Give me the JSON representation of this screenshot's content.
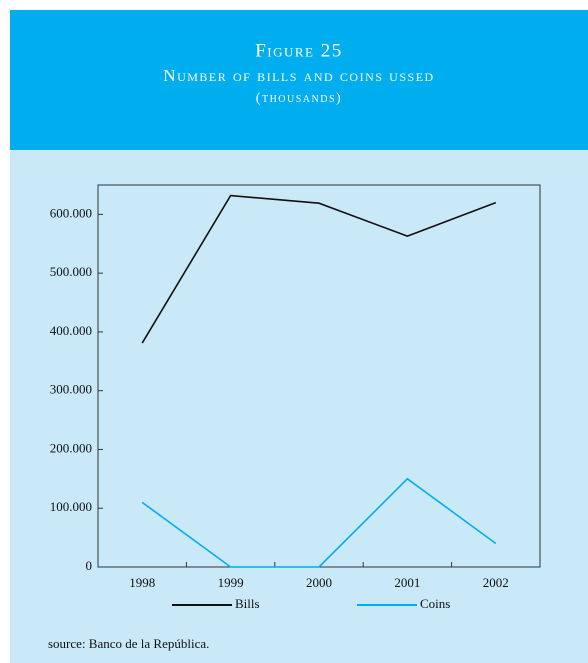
{
  "chart_data": {
    "type": "line",
    "title": "Figure 25",
    "subtitle": [
      "Number of bills and coins ussed",
      "(thousands)"
    ],
    "source": "source: Banco de la República.",
    "categories": [
      "1998",
      "1999",
      "2000",
      "2001",
      "2002"
    ],
    "series": [
      {
        "name": "Bills",
        "color": "#111111",
        "values": [
          381000,
          632000,
          619000,
          563000,
          620000
        ]
      },
      {
        "name": "Coins",
        "color": "#00aeef",
        "values": [
          110000,
          0,
          0,
          150000,
          40000
        ]
      }
    ],
    "ylim": [
      0,
      650000
    ],
    "yticks": [
      0,
      {
        "value": 100000,
        "label": "100.000"
      },
      {
        "value": 200000,
        "label": "200.000"
      },
      {
        "value": 300000,
        "label": "300.000"
      },
      {
        "value": 400000,
        "label": "400.000"
      },
      {
        "value": 500000,
        "label": "500.000"
      },
      {
        "value": 600000,
        "label": "600.000"
      }
    ],
    "grid": false,
    "legend": "bottom"
  }
}
